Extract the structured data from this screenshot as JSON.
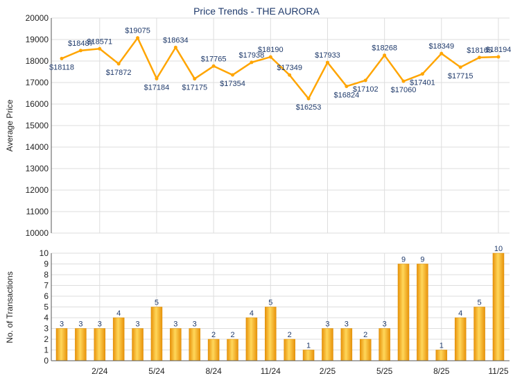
{
  "chart_data": [
    {
      "type": "line",
      "title": "Price Trends - THE AURORA",
      "ylabel": "Average Price",
      "ylim": [
        10000,
        20000
      ],
      "yticks": [
        10000,
        11000,
        12000,
        13000,
        14000,
        15000,
        16000,
        17000,
        18000,
        19000,
        20000
      ],
      "values": [
        18118,
        18487,
        18571,
        17872,
        19075,
        17184,
        18634,
        17175,
        17765,
        17354,
        17938,
        18190,
        17349,
        16253,
        17933,
        16824,
        17102,
        18268,
        17060,
        17401,
        18349,
        17715,
        18165,
        18194
      ],
      "labels": [
        "$18118",
        "$18487",
        "$18571",
        "$17872",
        "$19075",
        "$17184",
        "$18634",
        "$17175",
        "$17765",
        "$17354",
        "$17938",
        "$18190",
        "$17349",
        "$16253",
        "$17933",
        "$16824",
        "$17102",
        "$18268",
        "$17060",
        "$17401",
        "$18349",
        "$17715",
        "$18165",
        "$18194"
      ],
      "color": "#FFA500",
      "grid": true
    },
    {
      "type": "bar",
      "ylabel": "No. of Transactions",
      "ylim": [
        0,
        10
      ],
      "yticks": [
        0,
        1,
        2,
        3,
        4,
        5,
        6,
        7,
        8,
        9,
        10
      ],
      "values": [
        3,
        3,
        3,
        4,
        3,
        5,
        3,
        3,
        2,
        2,
        4,
        5,
        2,
        1,
        3,
        3,
        2,
        3,
        9,
        9,
        1,
        4,
        5,
        10
      ],
      "xtick_labels": [
        "2/24",
        "5/24",
        "8/24",
        "11/24",
        "2/25",
        "5/25",
        "8/25",
        "11/25"
      ],
      "color": "#F5A623",
      "grid": true
    }
  ]
}
